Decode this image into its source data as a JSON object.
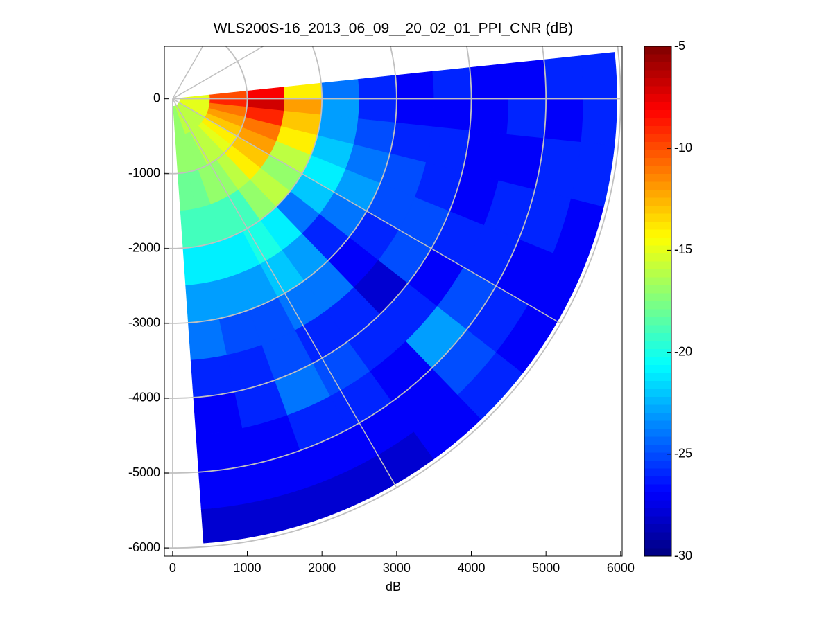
{
  "chart_data": {
    "type": "polar_heatmap",
    "title": "WLS200S-16_2013_06_09__20_02_01_PPI_CNR (dB)",
    "xlabel": "dB",
    "xlim": [
      -110,
      6020
    ],
    "ylim": [
      -6110,
      700
    ],
    "xticks": [
      0,
      1000,
      2000,
      3000,
      4000,
      5000,
      6000
    ],
    "yticks": [
      0,
      -1000,
      -2000,
      -3000,
      -4000,
      -5000,
      -6000
    ],
    "angle_bins": [
      -86,
      -78,
      -70,
      -62,
      -54,
      -46,
      -38,
      -30,
      -22,
      -14,
      -6,
      0,
      6
    ],
    "range_bins": [
      100,
      500,
      1000,
      1500,
      2000,
      2500,
      3000,
      3500,
      4000,
      4500,
      5000,
      5500,
      5950
    ],
    "values": [
      [
        -17,
        -17,
        -18,
        -19,
        -21,
        -23,
        -24,
        -26,
        -27,
        -27,
        -27,
        -28
      ],
      [
        -17,
        -17,
        -18,
        -19,
        -21,
        -23,
        -25,
        -26,
        -26,
        -27,
        -27,
        -28
      ],
      [
        -16,
        -17,
        -17,
        -19,
        -21,
        -23,
        -25,
        -25,
        -24,
        -26,
        -27,
        -28
      ],
      [
        -16,
        -16,
        -17,
        -19,
        -20,
        -22,
        -24,
        -26,
        -25,
        -26,
        -27,
        -28
      ],
      [
        -16,
        -16,
        -16,
        -17,
        -21,
        -23,
        -24,
        -26,
        -26,
        -27,
        -27,
        -27
      ],
      [
        -16,
        -15,
        -14,
        -16,
        -24,
        -26,
        -27,
        -28,
        -26,
        -23,
        -25,
        -26
      ],
      [
        -16,
        -14,
        -13,
        -17,
        -22,
        -24,
        -26,
        -25,
        -27,
        -25,
        -26,
        -27
      ],
      [
        -15,
        -13,
        -12,
        -16,
        -21,
        -23,
        -25,
        -25,
        -26,
        -26,
        -27,
        -27
      ],
      [
        -15,
        -12,
        -11,
        -14,
        -22,
        -24,
        -25,
        -26,
        -27,
        -26,
        -26,
        -27
      ],
      [
        -15,
        -11,
        -9,
        -13,
        -23,
        -25,
        -26,
        -26,
        -27,
        -27,
        -26,
        -26
      ],
      [
        -15,
        -9,
        -7,
        -12,
        -23,
        -26,
        -27,
        -27,
        -27,
        -26,
        -27,
        -26
      ],
      [
        -15,
        -10,
        -8,
        -14,
        -24,
        -26,
        -27,
        -26,
        -27,
        -27,
        -26,
        -26
      ]
    ],
    "colormap": "jet",
    "clim": [
      -30,
      -5
    ],
    "colorbar_ticks": [
      -5,
      -10,
      -15,
      -20,
      -25,
      -30
    ],
    "polar_grid": {
      "radii": [
        1000,
        2000,
        3000,
        4000,
        5000,
        6000
      ],
      "angles": [
        -90,
        -60,
        -30,
        0,
        30,
        60
      ],
      "color": "#c0c0c0"
    }
  }
}
